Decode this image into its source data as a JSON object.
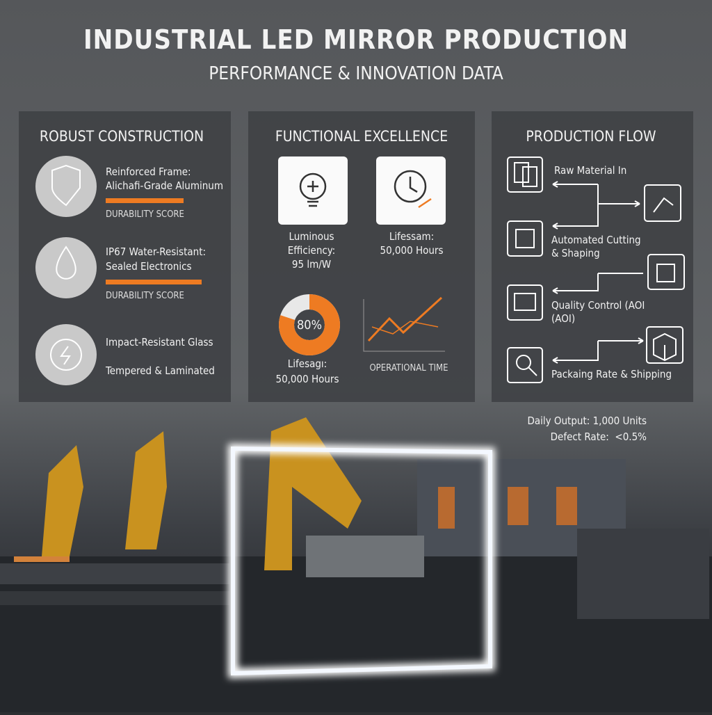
{
  "header": {
    "title": "INDUSTRIAL LED MIRROR PRODUCTION",
    "subtitle": "PERFORMANCE & INNOVATION DATA"
  },
  "panels": [
    {
      "title": "ROBUST CONSTRUCTION",
      "items": [
        {
          "lines": [
            "Reinforced Frame:",
            "Alichafi-Grade Aluminum"
          ],
          "caption": "DURABILITY SCORE"
        },
        {
          "lines": [
            "IP67 Water-Resistant:",
            "Sealed Electronics"
          ],
          "caption": "DURABILITY SCORE"
        },
        {
          "lines": [
            "Impact-Resistant Glass",
            "Tempered & Laminated"
          ]
        }
      ]
    },
    {
      "title": "FUNCTIONAL EXCELLENCE",
      "efficiency": [
        "Luminous",
        "Efficiency:",
        "95 lm/W"
      ],
      "lifespan": [
        "Lifessam:",
        "50,000 Hours"
      ],
      "donut": {
        "value": 80,
        "label": "80%"
      },
      "donut_caption": [
        "Lifesagı:",
        "50,000 Hours"
      ],
      "chart_caption": "OPERATIONAL TIME"
    },
    {
      "title": "PRODUCTION FLOW",
      "steps": [
        [
          "Raw Material In"
        ],
        [
          "Automated Cutting",
          "& Shaping"
        ],
        [
          "Quality Control (AOI",
          "(AOI)"
        ],
        [
          "Packaing Rate & Shipping"
        ]
      ]
    }
  ],
  "stats": [
    "Daily Output: 1,000 Units",
    "Defect Rate:  <0.5%"
  ]
}
